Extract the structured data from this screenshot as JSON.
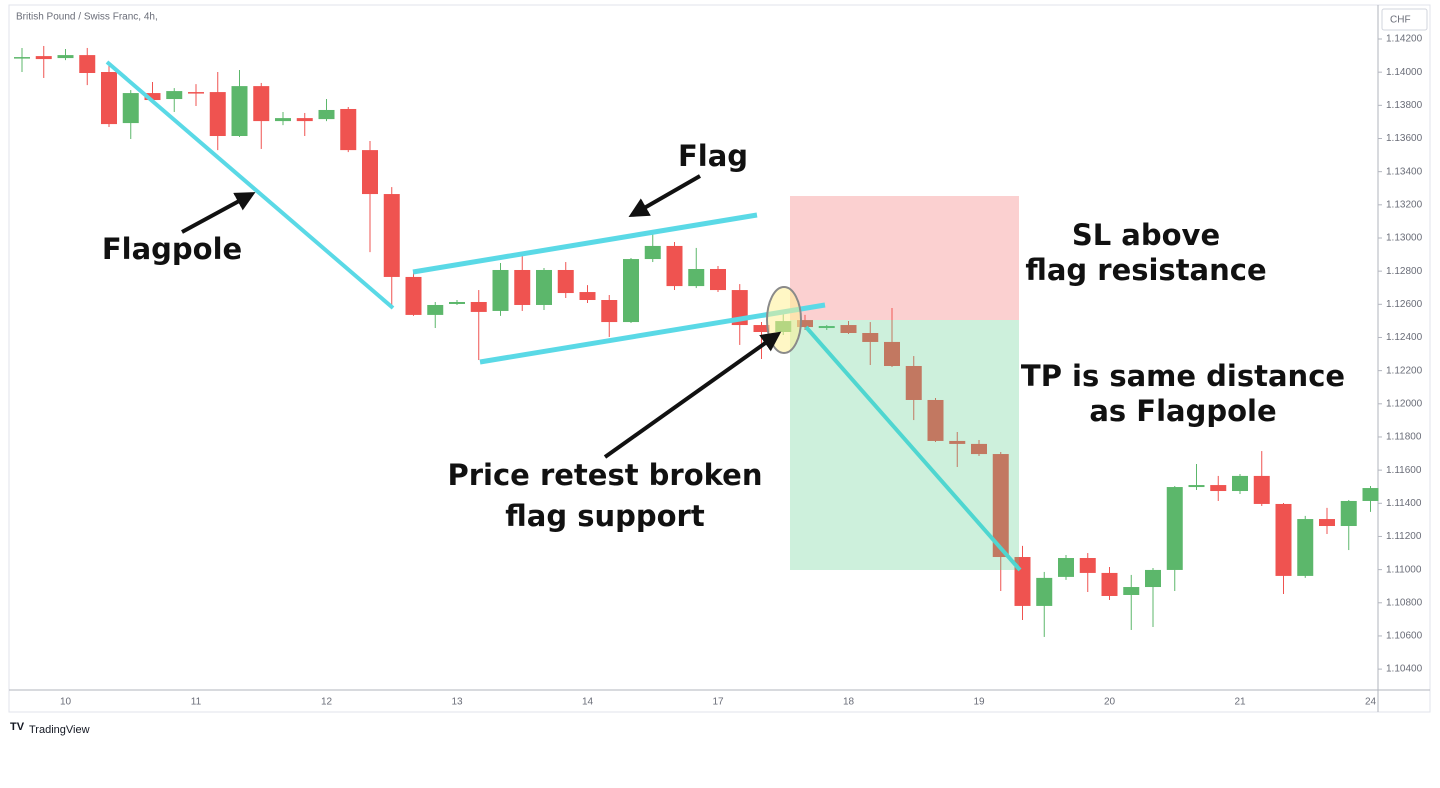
{
  "chart_data": {
    "type": "candlestick",
    "title": "British Pound / Swiss Franc, 4h,",
    "currency": "CHF",
    "watermark": "TradingView",
    "categories": [
      null,
      null,
      "10",
      null,
      null,
      null,
      null,
      null,
      "11",
      null,
      null,
      null,
      null,
      null,
      "12",
      null,
      null,
      null,
      null,
      null,
      "13",
      null,
      null,
      null,
      null,
      null,
      "14",
      null,
      null,
      null,
      null,
      null,
      "17",
      null,
      null,
      null,
      null,
      null,
      "18",
      null,
      null,
      null,
      null,
      null,
      "19",
      null,
      null,
      null,
      null,
      null,
      "20",
      null,
      null,
      null,
      null,
      null,
      "21",
      null,
      null,
      null,
      null,
      null,
      "24"
    ],
    "open": [
      1.14088,
      1.14097,
      1.14085,
      1.14103,
      1.14001,
      1.13693,
      1.13874,
      1.13838,
      1.1388,
      1.1388,
      1.13615,
      1.13916,
      1.13705,
      1.13723,
      1.13717,
      1.13778,
      1.1353,
      1.13265,
      1.12765,
      1.12536,
      1.12602,
      1.12614,
      1.1256,
      1.12807,
      1.12596,
      1.12807,
      1.12674,
      1.12626,
      1.12493,
      1.12873,
      1.12952,
      1.1271,
      1.12813,
      1.12686,
      1.12475,
      1.12433,
      1.12505,
      1.12457,
      1.12475,
      1.12427,
      1.12373,
      1.12228,
      1.12023,
      1.11776,
      1.11758,
      1.11697,
      1.11076,
      1.10781,
      1.10956,
      1.1107,
      1.1098,
      1.10847,
      1.10895,
      1.10998,
      1.11498,
      1.1151,
      1.11474,
      1.11565,
      1.11396,
      1.10962,
      1.11305,
      1.11263,
      1.11414
    ],
    "high": [
      1.14146,
      1.14158,
      1.1414,
      1.14146,
      1.14055,
      1.13892,
      1.13941,
      1.13904,
      1.13928,
      1.14001,
      1.14013,
      1.13935,
      1.1376,
      1.13754,
      1.13838,
      1.1379,
      1.13585,
      1.13307,
      1.12795,
      1.12614,
      1.12626,
      1.12686,
      1.12849,
      1.12915,
      1.12819,
      1.12855,
      1.12716,
      1.12656,
      1.12879,
      1.1303,
      1.12976,
      1.1294,
      1.12831,
      1.12722,
      1.12493,
      1.12548,
      1.12536,
      1.12475,
      1.12499,
      1.12493,
      1.12578,
      1.12288,
      1.12035,
      1.1183,
      1.11782,
      1.11709,
      1.11143,
      1.10986,
      1.11088,
      1.111,
      1.11016,
      1.10968,
      1.1101,
      1.11504,
      1.11637,
      1.11565,
      1.11577,
      1.11715,
      1.11402,
      1.11324,
      1.11372,
      1.1142,
      1.11504
    ],
    "low": [
      1.14001,
      1.13965,
      1.14073,
      1.13922,
      1.13669,
      1.13597,
      1.1382,
      1.1376,
      1.13796,
      1.1353,
      1.13609,
      1.13537,
      1.13681,
      1.13615,
      1.13705,
      1.13518,
      1.12915,
      1.1259,
      1.1253,
      1.12457,
      1.12596,
      1.12264,
      1.1253,
      1.1256,
      1.12566,
      1.12638,
      1.12608,
      1.12403,
      1.12487,
      1.12855,
      1.12686,
      1.12698,
      1.12674,
      1.12355,
      1.1227,
      1.12415,
      1.12445,
      1.12445,
      1.12421,
      1.12234,
      1.12222,
      1.11902,
      1.1177,
      1.11619,
      1.11685,
      1.10871,
      1.10696,
      1.10594,
      1.10938,
      1.10865,
      1.10817,
      1.10636,
      1.10654,
      1.10871,
      1.1148,
      1.11414,
      1.11456,
      1.11384,
      1.10853,
      1.1095,
      1.11215,
      1.11118,
      1.11348
    ],
    "close": [
      1.14091,
      1.14079,
      1.14103,
      1.13995,
      1.13687,
      1.13874,
      1.13832,
      1.13886,
      1.13874,
      1.13615,
      1.13916,
      1.13705,
      1.13723,
      1.13705,
      1.13772,
      1.1353,
      1.13265,
      1.12765,
      1.12536,
      1.12596,
      1.12614,
      1.12554,
      1.12807,
      1.12596,
      1.12807,
      1.12668,
      1.12626,
      1.12493,
      1.12873,
      1.12952,
      1.1271,
      1.12813,
      1.12686,
      1.12475,
      1.12433,
      1.12499,
      1.12463,
      1.12469,
      1.12427,
      1.12373,
      1.12228,
      1.12023,
      1.11776,
      1.11758,
      1.11697,
      1.11076,
      1.10781,
      1.1095,
      1.1107,
      1.1098,
      1.10841,
      1.10895,
      1.10998,
      1.11498,
      1.1151,
      1.11474,
      1.11565,
      1.11396,
      1.10962,
      1.11305,
      1.11263,
      1.11414,
      1.11492
    ],
    "up_color": "#5cb76b",
    "down_color": "#ef5350",
    "ylim": [
      1.10274,
      1.14387
    ],
    "yticks": [
      {
        "value": 1.104,
        "label": "1.10400"
      },
      {
        "value": 1.106,
        "label": "1.10600"
      },
      {
        "value": 1.108,
        "label": "1.10800"
      },
      {
        "value": 1.11,
        "label": "1.11000"
      },
      {
        "value": 1.112,
        "label": "1.11200"
      },
      {
        "value": 1.114,
        "label": "1.11400"
      },
      {
        "value": 1.116,
        "label": "1.11600"
      },
      {
        "value": 1.118,
        "label": "1.11800"
      },
      {
        "value": 1.12,
        "label": "1.12000"
      },
      {
        "value": 1.122,
        "label": "1.12200"
      },
      {
        "value": 1.124,
        "label": "1.12400"
      },
      {
        "value": 1.126,
        "label": "1.12600"
      },
      {
        "value": 1.128,
        "label": "1.12800"
      },
      {
        "value": 1.13,
        "label": "1.13000"
      },
      {
        "value": 1.132,
        "label": "1.13200"
      },
      {
        "value": 1.134,
        "label": "1.13400"
      },
      {
        "value": 1.136,
        "label": "1.13600"
      },
      {
        "value": 1.138,
        "label": "1.13800"
      },
      {
        "value": 1.14,
        "label": "1.14000"
      },
      {
        "value": 1.142,
        "label": "1.14200"
      }
    ],
    "grid": false,
    "annotations": [
      [
        "Flag"
      ],
      [
        "Flagpole"
      ],
      [
        "SL above",
        "flag resistance"
      ],
      [
        "TP is same distance",
        "as Flagpole"
      ],
      [
        "Price retest broken",
        "flag support"
      ]
    ]
  }
}
